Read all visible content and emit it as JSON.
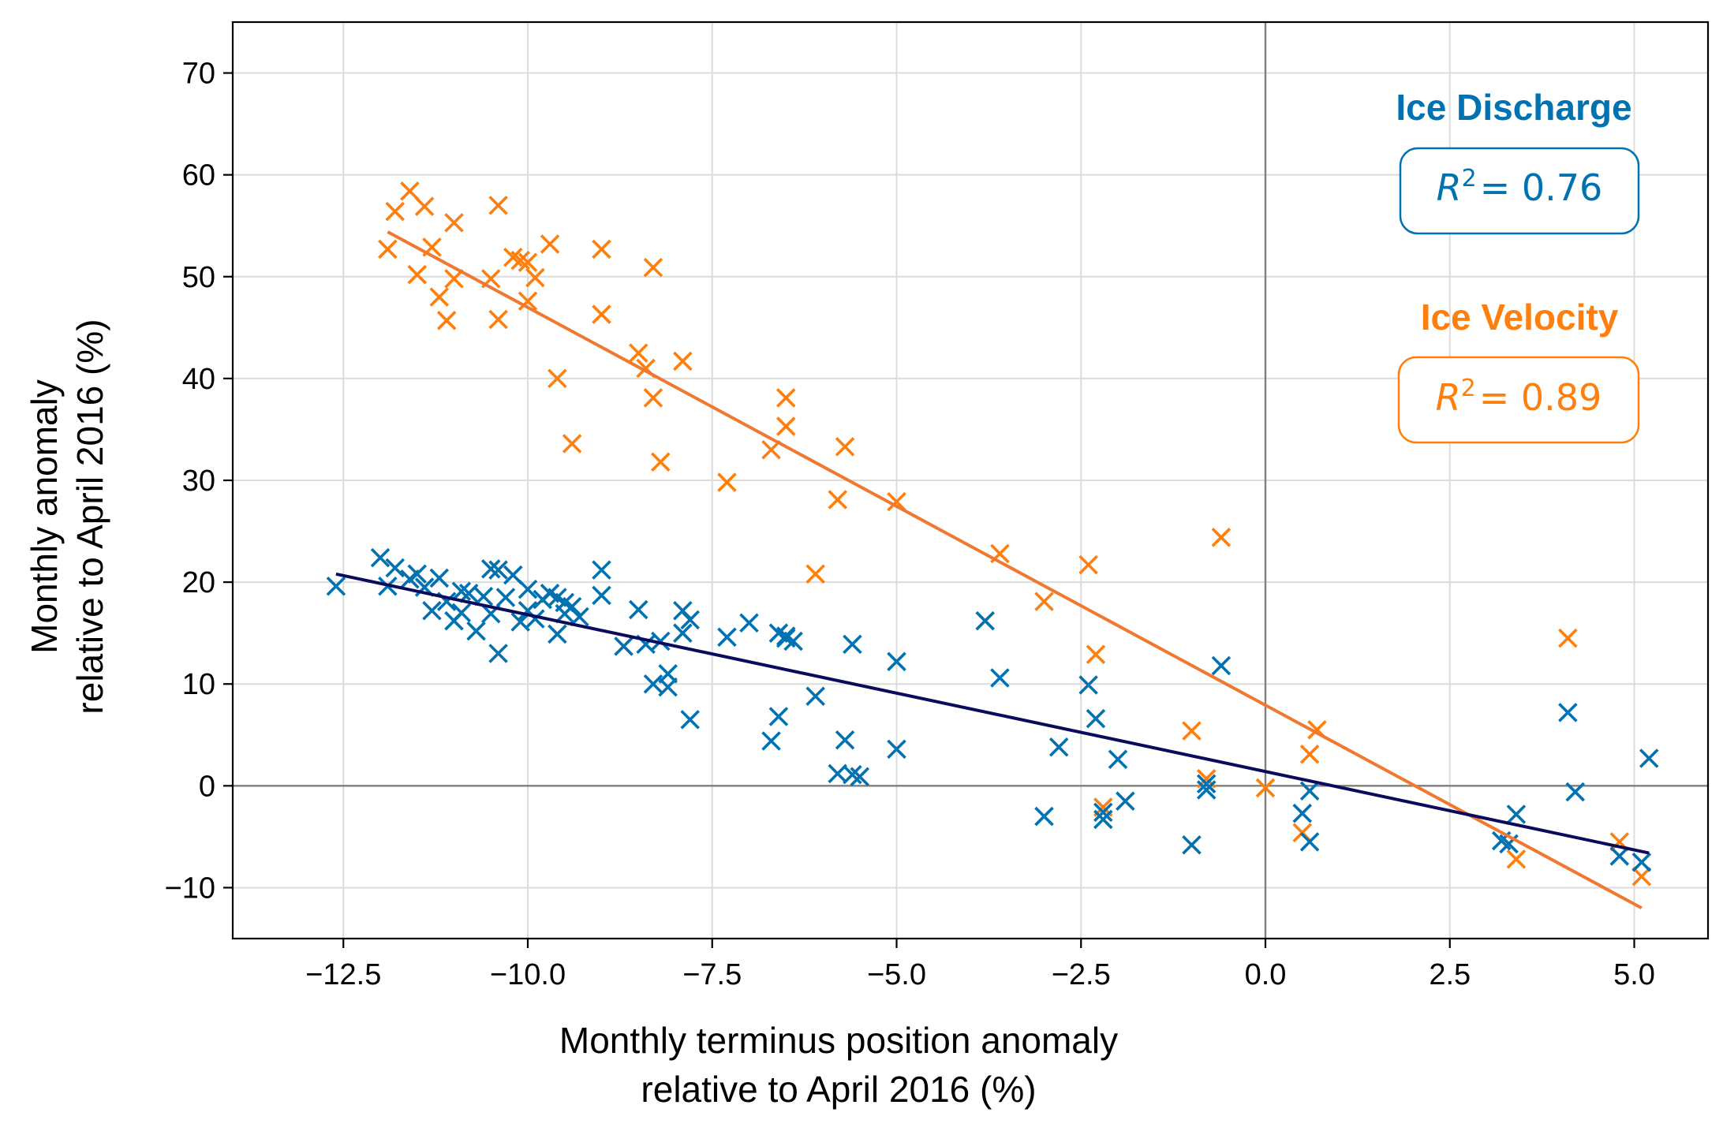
{
  "chart_data": {
    "type": "scatter",
    "xlabel": [
      "Monthly terminus position anomaly",
      "relative to April 2016 (%)"
    ],
    "ylabel": [
      "Monthly anomaly",
      "relative to April 2016 (%)"
    ],
    "xlim": [
      -14.0,
      6.0
    ],
    "ylim": [
      -15,
      75
    ],
    "xticks": [
      -12.5,
      -10.0,
      -7.5,
      -5.0,
      -2.5,
      0.0,
      2.5,
      5.0
    ],
    "xtick_labels": [
      "−12.5",
      "−10.0",
      "−7.5",
      "−5.0",
      "−2.5",
      "0.0",
      "2.5",
      "5.0"
    ],
    "yticks": [
      -10,
      0,
      10,
      20,
      30,
      40,
      50,
      60,
      70
    ],
    "ytick_labels": [
      "−10",
      "0",
      "10",
      "20",
      "30",
      "40",
      "50",
      "60",
      "70"
    ],
    "grid": true,
    "zero_lines": true,
    "series": [
      {
        "name": "Ice Discharge",
        "color": "#0072b2",
        "marker": "x",
        "r2_label": "= 0.76",
        "fit_line": {
          "color": "#0b0b5e",
          "x": [
            -12.6,
            5.2
          ],
          "y": [
            20.8,
            -6.6
          ]
        },
        "points": [
          [
            -12.6,
            19.6
          ],
          [
            -12.0,
            22.4
          ],
          [
            -11.9,
            19.6
          ],
          [
            -11.8,
            21.4
          ],
          [
            -11.6,
            20.3
          ],
          [
            -11.5,
            20.8
          ],
          [
            -11.4,
            19.5
          ],
          [
            -11.3,
            17.2
          ],
          [
            -11.2,
            20.4
          ],
          [
            -11.1,
            18.1
          ],
          [
            -11.0,
            16.2
          ],
          [
            -10.9,
            17.0
          ],
          [
            -10.8,
            18.9
          ],
          [
            -10.9,
            19.1
          ],
          [
            -10.7,
            15.2
          ],
          [
            -10.6,
            18.6
          ],
          [
            -10.5,
            21.3
          ],
          [
            -10.5,
            16.9
          ],
          [
            -10.4,
            21.2
          ],
          [
            -10.4,
            13.0
          ],
          [
            -10.3,
            18.5
          ],
          [
            -10.2,
            20.7
          ],
          [
            -10.1,
            16.1
          ],
          [
            -10.0,
            19.3
          ],
          [
            -10.0,
            17.2
          ],
          [
            -9.9,
            16.4
          ],
          [
            -9.8,
            18.3
          ],
          [
            -9.7,
            18.9
          ],
          [
            -9.6,
            14.9
          ],
          [
            -9.5,
            16.9
          ],
          [
            -9.4,
            17.6
          ],
          [
            -9.3,
            16.6
          ],
          [
            -9.6,
            18.5
          ],
          [
            -9.5,
            18.0
          ],
          [
            -9.0,
            21.2
          ],
          [
            -9.0,
            18.7
          ],
          [
            -8.7,
            13.7
          ],
          [
            -8.5,
            17.3
          ],
          [
            -8.4,
            13.9
          ],
          [
            -8.3,
            10.0
          ],
          [
            -8.2,
            14.2
          ],
          [
            -8.1,
            11.0
          ],
          [
            -8.1,
            9.7
          ],
          [
            -7.9,
            15.0
          ],
          [
            -7.9,
            17.2
          ],
          [
            -7.8,
            16.3
          ],
          [
            -7.8,
            6.5
          ],
          [
            -7.3,
            14.6
          ],
          [
            -7.0,
            16.0
          ],
          [
            -6.7,
            4.4
          ],
          [
            -6.6,
            6.8
          ],
          [
            -6.6,
            15.0
          ],
          [
            -6.5,
            14.7
          ],
          [
            -6.5,
            14.5
          ],
          [
            -6.4,
            14.2
          ],
          [
            -6.1,
            8.8
          ],
          [
            -5.8,
            1.2
          ],
          [
            -5.7,
            4.5
          ],
          [
            -5.6,
            13.9
          ],
          [
            -5.6,
            1.1
          ],
          [
            -5.5,
            0.9
          ],
          [
            -5.0,
            3.6
          ],
          [
            -5.0,
            12.2
          ],
          [
            -3.8,
            16.2
          ],
          [
            -3.6,
            10.6
          ],
          [
            -3.0,
            -3.0
          ],
          [
            -2.8,
            3.8
          ],
          [
            -2.4,
            9.9
          ],
          [
            -2.3,
            6.6
          ],
          [
            -2.2,
            -2.6
          ],
          [
            -2.2,
            -3.3
          ],
          [
            -2.0,
            2.6
          ],
          [
            -1.9,
            -1.5
          ],
          [
            -1.0,
            -5.8
          ],
          [
            -0.8,
            0.2
          ],
          [
            -0.8,
            -0.4
          ],
          [
            -0.6,
            11.8
          ],
          [
            0.5,
            -2.7
          ],
          [
            0.6,
            -0.5
          ],
          [
            0.6,
            -5.5
          ],
          [
            3.2,
            -5.4
          ],
          [
            3.3,
            -5.7
          ],
          [
            3.4,
            -2.8
          ],
          [
            4.1,
            7.2
          ],
          [
            4.2,
            -0.6
          ],
          [
            4.8,
            -6.9
          ],
          [
            5.1,
            -7.5
          ],
          [
            5.2,
            2.7
          ]
        ]
      },
      {
        "name": "Ice Velocity",
        "color": "#ff7f0e",
        "marker": "x",
        "r2_label": "= 0.89",
        "fit_line": {
          "color": "#f07830",
          "x": [
            -11.9,
            5.1
          ],
          "y": [
            54.4,
            -12.0
          ]
        },
        "points": [
          [
            -11.9,
            52.7
          ],
          [
            -11.8,
            56.4
          ],
          [
            -11.6,
            58.4
          ],
          [
            -11.5,
            50.2
          ],
          [
            -11.4,
            56.9
          ],
          [
            -11.3,
            52.9
          ],
          [
            -11.2,
            48.0
          ],
          [
            -11.1,
            45.7
          ],
          [
            -11.0,
            55.3
          ],
          [
            -11.0,
            49.8
          ],
          [
            -10.5,
            49.8
          ],
          [
            -10.4,
            57.0
          ],
          [
            -10.4,
            45.8
          ],
          [
            -10.2,
            51.9
          ],
          [
            -10.1,
            51.6
          ],
          [
            -10.0,
            51.4
          ],
          [
            -10.0,
            47.6
          ],
          [
            -9.9,
            49.9
          ],
          [
            -9.7,
            53.2
          ],
          [
            -9.6,
            40.0
          ],
          [
            -9.4,
            33.6
          ],
          [
            -9.0,
            52.7
          ],
          [
            -9.0,
            46.3
          ],
          [
            -8.5,
            42.5
          ],
          [
            -8.4,
            41.0
          ],
          [
            -8.3,
            50.9
          ],
          [
            -8.3,
            38.1
          ],
          [
            -8.2,
            31.8
          ],
          [
            -7.9,
            41.7
          ],
          [
            -7.3,
            29.8
          ],
          [
            -6.7,
            33.0
          ],
          [
            -6.5,
            38.1
          ],
          [
            -6.5,
            35.3
          ],
          [
            -6.1,
            20.8
          ],
          [
            -5.8,
            28.1
          ],
          [
            -5.7,
            33.3
          ],
          [
            -5.0,
            27.9
          ],
          [
            -3.6,
            22.8
          ],
          [
            -3.0,
            18.1
          ],
          [
            -2.4,
            21.7
          ],
          [
            -2.3,
            12.9
          ],
          [
            -2.2,
            -2.1
          ],
          [
            -1.0,
            5.4
          ],
          [
            -0.8,
            0.7
          ],
          [
            -0.6,
            24.4
          ],
          [
            0.0,
            -0.2
          ],
          [
            0.5,
            -4.6
          ],
          [
            0.6,
            3.1
          ],
          [
            0.7,
            5.5
          ],
          [
            3.4,
            -7.2
          ],
          [
            4.1,
            14.5
          ],
          [
            4.8,
            -5.5
          ],
          [
            5.1,
            -8.9
          ]
        ]
      }
    ],
    "legend_placement": "top-right"
  }
}
